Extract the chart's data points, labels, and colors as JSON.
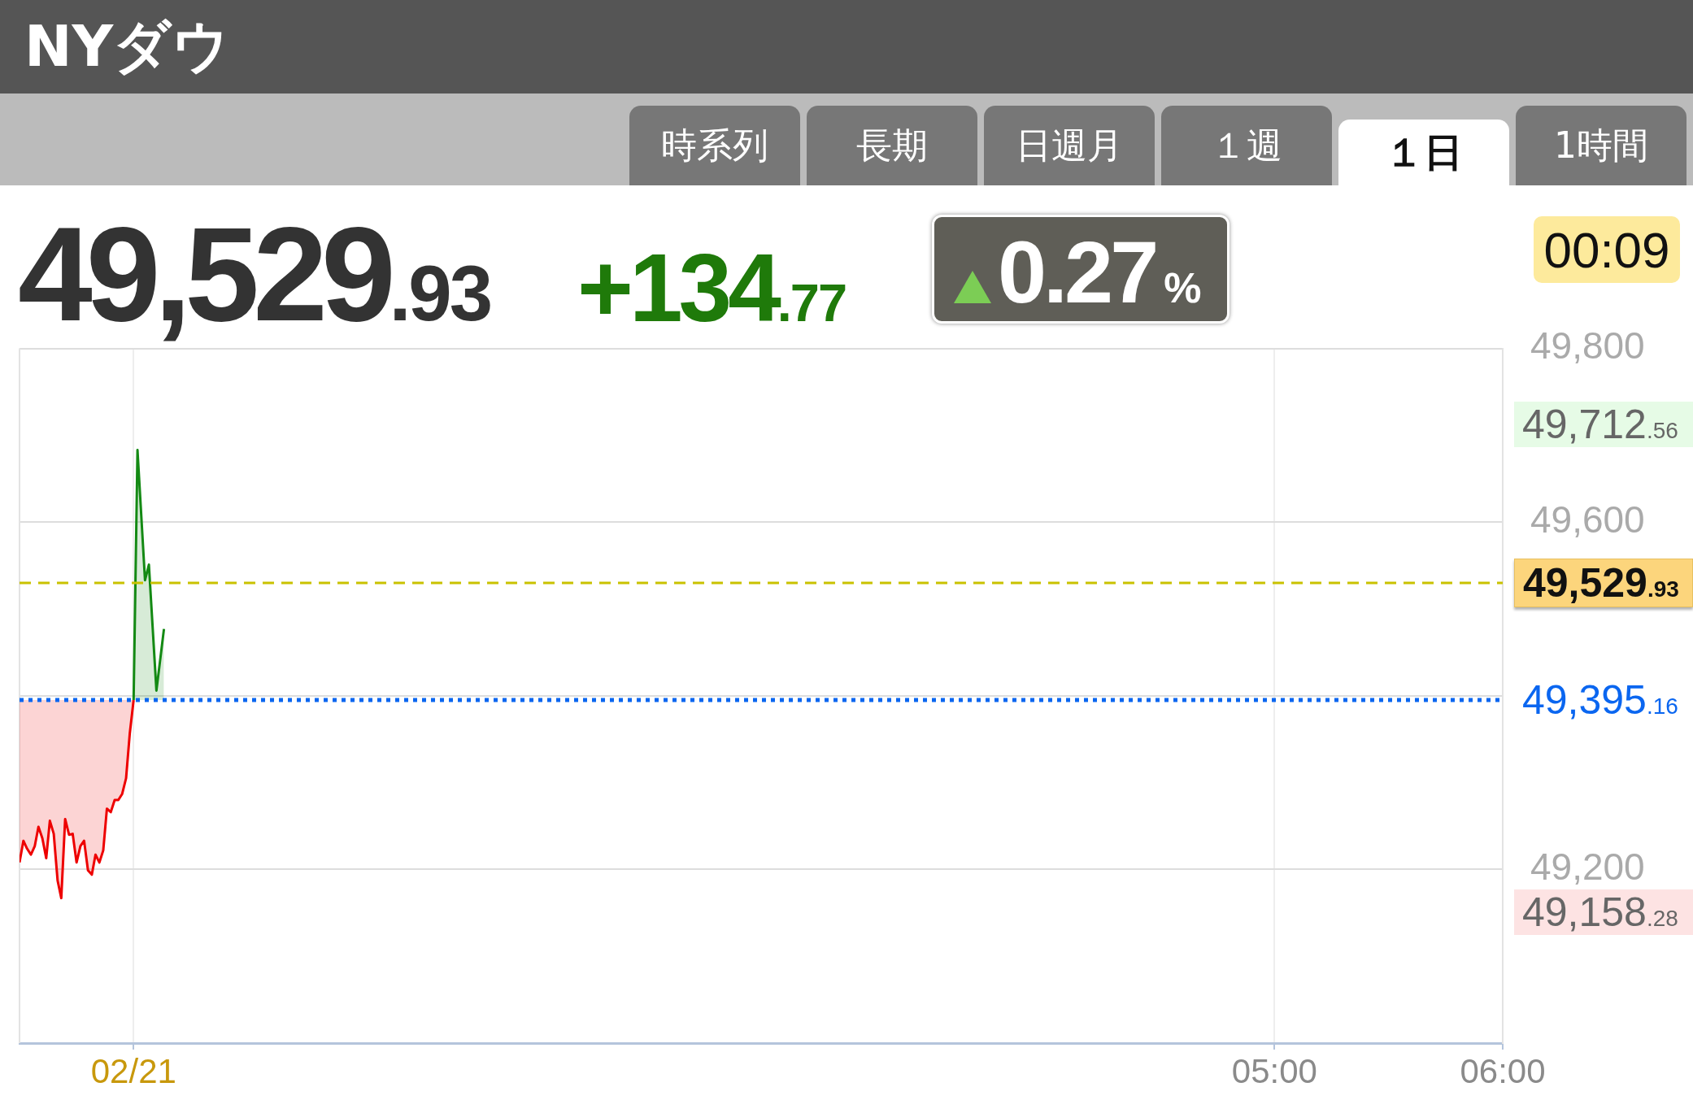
{
  "chart_data": {
    "type": "line",
    "title": "NYダウ",
    "annotations": [
      "49,529.93",
      "+134.77",
      "0.27%",
      "00:09",
      "49,712.56",
      "49,158.28",
      "時系列",
      "長期",
      "日週月",
      "１週",
      "１日",
      "1時間"
    ],
    "series": [
      {
        "color": "#ee0000",
        "x": [
          -0.5,
          -0.483,
          -0.467,
          -0.45,
          -0.433,
          -0.417,
          -0.4,
          -0.383,
          -0.367,
          -0.35,
          -0.333,
          -0.317,
          -0.3,
          -0.283,
          -0.267,
          -0.25,
          -0.233,
          -0.217,
          -0.2,
          -0.183,
          -0.167,
          -0.15,
          -0.133,
          -0.117,
          -0.1,
          -0.083,
          -0.067,
          -0.05,
          -0.033,
          -0.017,
          0
        ],
        "values": [
          49208,
          49233,
          49224,
          49217,
          49227,
          49249,
          49236,
          49213,
          49256,
          49241,
          49187,
          49167,
          49258,
          49240,
          49241,
          49208,
          49227,
          49233,
          49199,
          49194,
          49217,
          49208,
          49222,
          49270,
          49266,
          49280,
          49280,
          49287,
          49305,
          49356,
          49395
        ],
        "lower": [
          49208,
          49233,
          49224,
          49217,
          49227,
          49249,
          49236,
          49213,
          49256,
          49241,
          49187,
          49167,
          49258,
          49240,
          49241,
          49208,
          49227,
          49233,
          49199,
          49194,
          49217,
          49208,
          49222,
          49270,
          49266,
          49280,
          49280,
          49287,
          49305,
          49356,
          49395
        ],
        "upper": [
          49395.16,
          49395.16,
          49395.16,
          49395.16,
          49395.16,
          49395.16,
          49395.16,
          49395.16,
          49395.16,
          49395.16,
          49395.16,
          49395.16,
          49395.16,
          49395.16,
          49395.16,
          49395.16,
          49395.16,
          49395.16,
          49395.16,
          49395.16,
          49395.16,
          49395.16,
          49395.16,
          49395.16,
          49395.16,
          49395.16,
          49395.16,
          49395.16,
          49395.16,
          49395.16,
          49395.16
        ]
      },
      {
        "color": "#148a14",
        "x": [
          0,
          0.017,
          0.05,
          0.067,
          0.1,
          0.133
        ],
        "values": [
          49395,
          49683,
          49533,
          49551,
          49406,
          49477
        ],
        "lower": [
          49395.16,
          49395.16,
          49395.16,
          49395.16,
          49395.16,
          49395.16
        ],
        "upper": [
          49395,
          49683,
          49533,
          49551,
          49406,
          49477
        ]
      }
    ],
    "xlim": [
      -0.5,
      6
    ],
    "xticks": [
      {
        "value": 0,
        "label": "02/21"
      },
      {
        "value": 5,
        "label": "05:00"
      },
      {
        "value": 6,
        "label": "06:00"
      }
    ],
    "ylim": [
      49000,
      49800
    ],
    "yticks": [
      {
        "value": 49200,
        "label": "49,200"
      },
      {
        "value": 49400,
        "label": null
      },
      {
        "value": 49600,
        "label": "49,600"
      },
      {
        "value": 49800,
        "label": "49,800"
      }
    ],
    "ref_lines": [
      {
        "axis": "y",
        "value": 49529.93,
        "label": "49,529.93",
        "color": "#c9c200",
        "line_style": "dashed"
      },
      {
        "axis": "y",
        "value": 49395.16,
        "label": "49,395.16",
        "color": "#0a66f0",
        "line_style": "dotted"
      }
    ],
    "grid": true
  }
}
